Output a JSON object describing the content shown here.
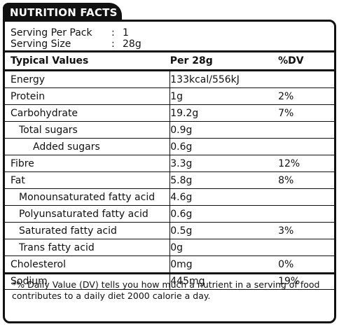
{
  "title": "NUTRITION FACTS",
  "serving": {
    "per_pack_label": "Serving Per Pack",
    "per_pack_value": "1",
    "size_label": "Serving Size",
    "size_value": "28g",
    "separator": ":"
  },
  "headers": {
    "name": "Typical Values",
    "per": "Per 28g",
    "dv": "%DV"
  },
  "rows": [
    {
      "name": "Energy",
      "amount": "133kcal/556kJ",
      "dv": "",
      "indent": 0
    },
    {
      "name": "Protein",
      "amount": "1g",
      "dv": "2%",
      "indent": 0
    },
    {
      "name": "Carbohydrate",
      "amount": "19.2g",
      "dv": "7%",
      "indent": 0
    },
    {
      "name": "Total sugars",
      "amount": "0.9g",
      "dv": "",
      "indent": 1
    },
    {
      "name": "Added sugars",
      "amount": "0.6g",
      "dv": "",
      "indent": 2
    },
    {
      "name": "Fibre",
      "amount": "3.3g",
      "dv": "12%",
      "indent": 0
    },
    {
      "name": "Fat",
      "amount": "5.8g",
      "dv": "8%",
      "indent": 0
    },
    {
      "name": "Monounsaturated fatty acid",
      "amount": "4.6g",
      "dv": "",
      "indent": 1
    },
    {
      "name": "Polyunsaturated fatty acid",
      "amount": "0.6g",
      "dv": "",
      "indent": 1
    },
    {
      "name": "Saturated fatty acid",
      "amount": "0.5g",
      "dv": "3%",
      "indent": 1
    },
    {
      "name": "Trans fatty acid",
      "amount": "0g",
      "dv": "",
      "indent": 1
    },
    {
      "name": "Cholesterol",
      "amount": "0mg",
      "dv": "0%",
      "indent": 0
    },
    {
      "name": "Sodium",
      "amount": "445mg",
      "dv": "19%",
      "indent": 0
    }
  ],
  "footnote": "*% Daily Value (DV) tells you how much a nutrient in a serving of food contributes to a daily diet 2000 calorie a day."
}
